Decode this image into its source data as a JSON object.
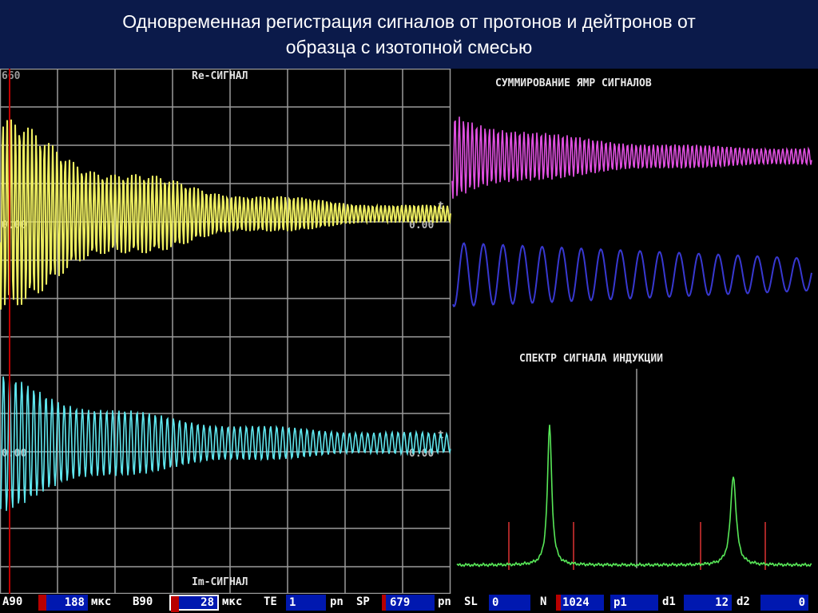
{
  "title": {
    "line1": "Одновременная регистрация сигналов от протонов и дейтронов от",
    "line2": "образца с изотопной смесью"
  },
  "left_panel": {
    "top_value": "660",
    "re_label": "Re-СИГНАЛ",
    "im_label": "Im-СИГНАЛ",
    "t_label": "t",
    "axis_zero_right": "0.00",
    "axis_zero_left": "0.00",
    "grid": true,
    "colors": {
      "re": "#ecec60",
      "im": "#5fe6ee",
      "grid": "#9a9a9a",
      "cursor": "#c00000"
    }
  },
  "right_panel": {
    "sum_title": "СУММИРОВАНИЕ ЯМР СИГНАЛОВ",
    "spectrum_title": "СПЕКТР СИГНАЛА ИНДУКЦИИ",
    "colors": {
      "sum": "#e050e0",
      "sine": "#3838d0",
      "spectrum": "#58e858",
      "markers": "#d03030"
    }
  },
  "status_bar": {
    "a90_label": "A90",
    "a90_value": "188",
    "a90_unit": "мкс",
    "b90_label": "B90",
    "b90_value": "28",
    "b90_unit": "мкс",
    "te_label": "TE",
    "te_value": "1",
    "te_unit": "pn",
    "sp_label": "SP",
    "sp_value": "679",
    "sp_unit": "pn",
    "sl_label": "SL",
    "sl_value": "0",
    "n_label": "N",
    "n_value": "1024",
    "p1_value": "p1",
    "d1_label": "d1",
    "d1_value": "12",
    "d2_label": "d2",
    "d2_value": "0"
  }
}
